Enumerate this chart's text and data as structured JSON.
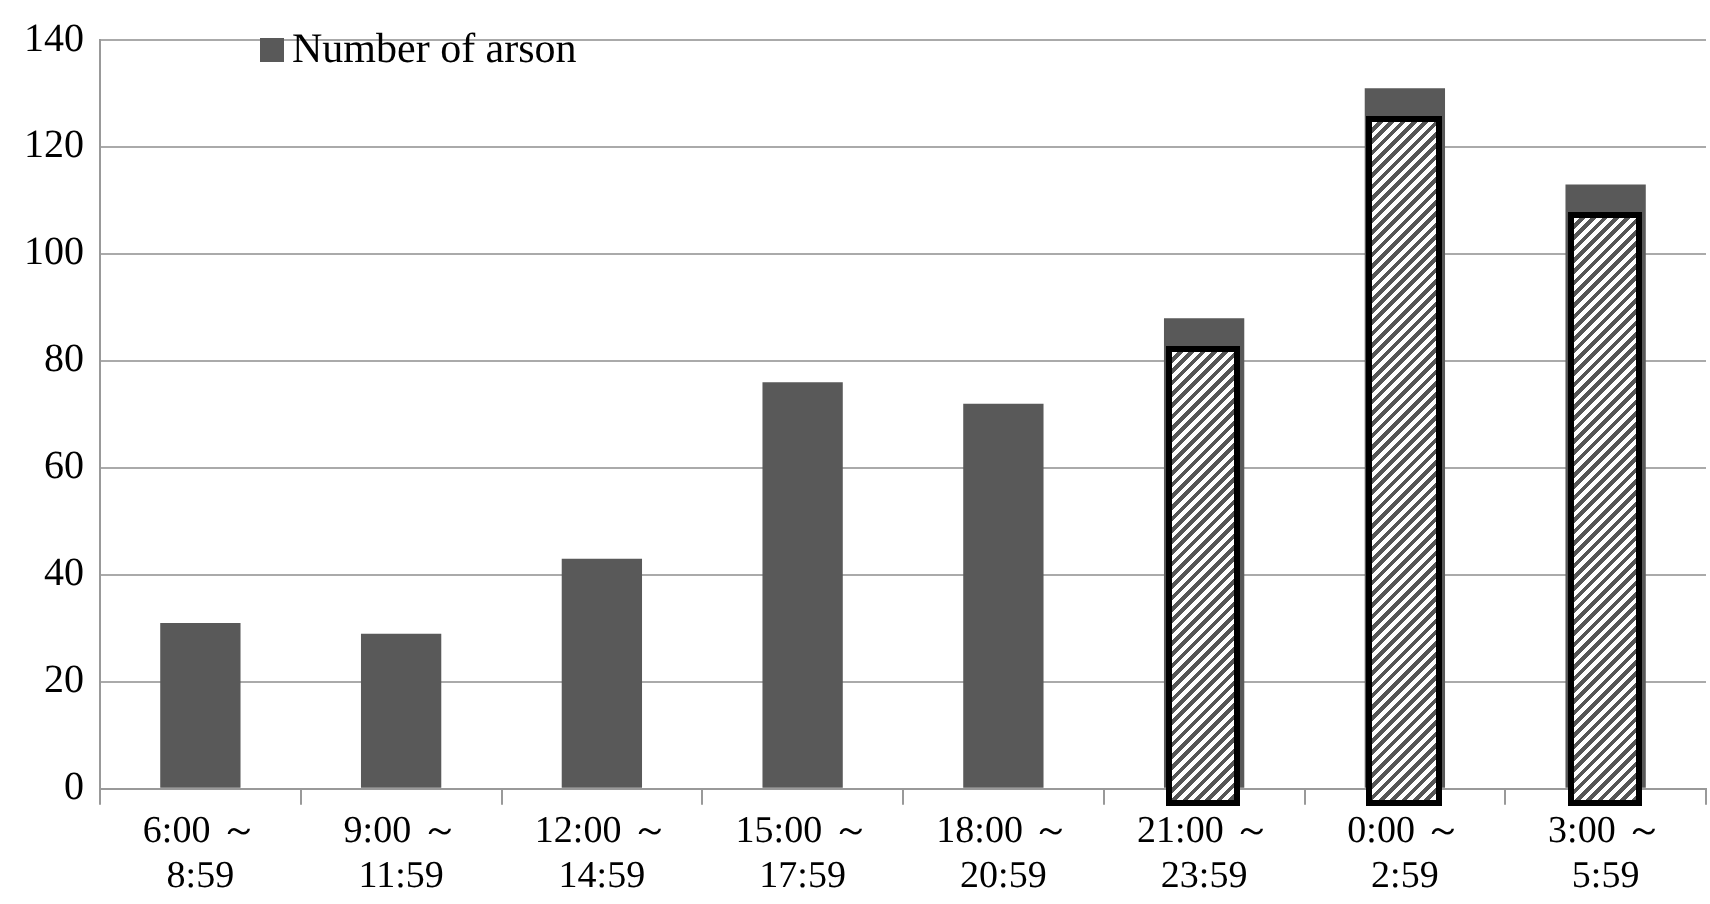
{
  "chart_data": {
    "type": "bar",
    "categories": [
      "6:00 ～ 8:59",
      "9:00 ～ 11:59",
      "12:00 ～ 14:59",
      "15:00 ～ 17:59",
      "18:00 ～ 20:59",
      "21:00 ～ 23:59",
      "0:00 ～ 2:59",
      "3:00 ～ 5:59"
    ],
    "series": [
      {
        "name": "Number of arson",
        "color": "#595959",
        "values": [
          31,
          29,
          43,
          76,
          72,
          88,
          131,
          113
        ]
      }
    ],
    "ylim": [
      0,
      140
    ],
    "yticks": [
      0,
      20,
      40,
      60,
      80,
      100,
      120,
      140
    ],
    "grid": "y",
    "legend": "top left"
  }
}
